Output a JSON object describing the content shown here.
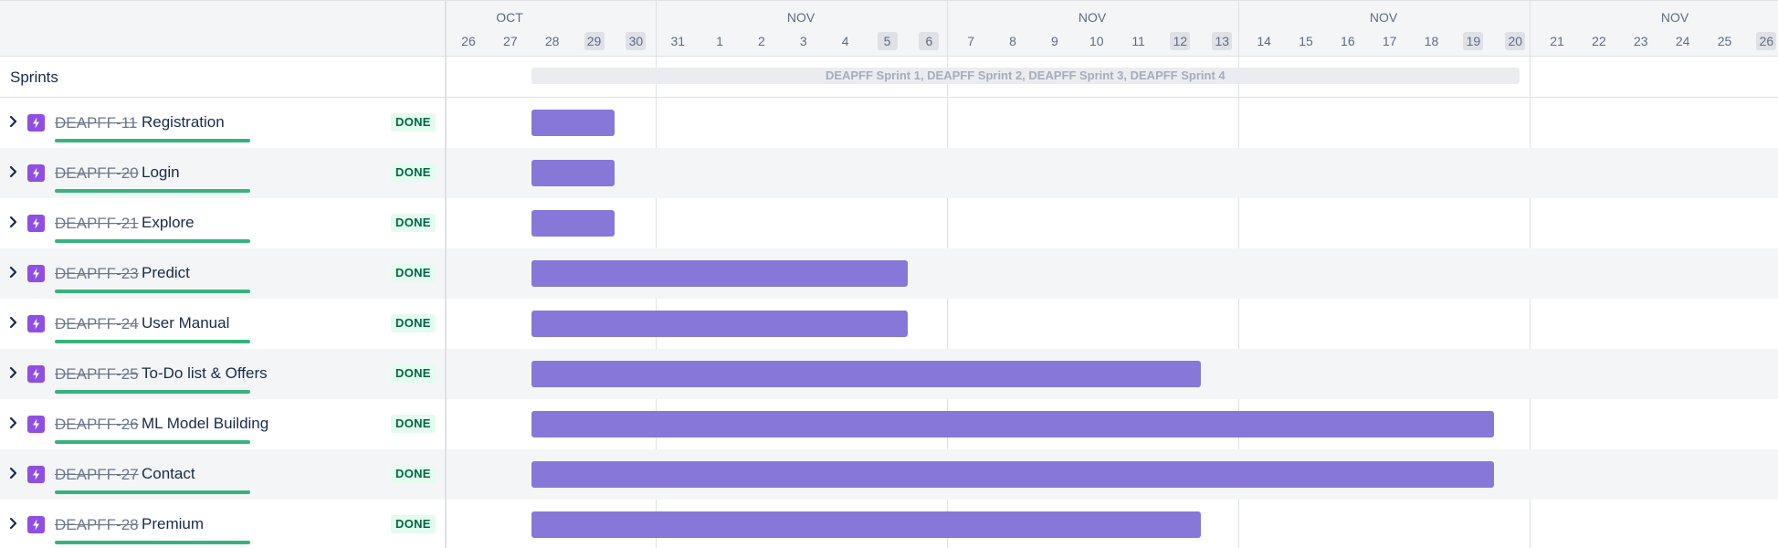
{
  "sidebar": {
    "sprints_label": "Sprints"
  },
  "timeline": {
    "months": [
      {
        "label": "OCT"
      },
      {
        "label": "NOV"
      },
      {
        "label": "NOV"
      },
      {
        "label": "NOV"
      },
      {
        "label": "NOV"
      }
    ],
    "days": [
      "26",
      "27",
      "28",
      "29",
      "30",
      "31",
      "1",
      "2",
      "3",
      "4",
      "5",
      "6",
      "7",
      "8",
      "9",
      "10",
      "11",
      "12",
      "13",
      "14",
      "15",
      "16",
      "17",
      "18",
      "19",
      "20",
      "21",
      "22",
      "23",
      "24",
      "25",
      "26"
    ],
    "weekend_days": [
      "29",
      "30",
      "5",
      "6",
      "12",
      "13",
      "19",
      "20",
      "26"
    ],
    "sprint_label": "DEAPFF Sprint 1, DEAPFF Sprint 2, DEAPFF Sprint 3, DEAPFF Sprint 4",
    "sprint_range": {
      "start": "Oct 28",
      "end": "Nov 20"
    }
  },
  "issues": [
    {
      "key": "DEAPFF-11",
      "title": "Registration",
      "status": "DONE",
      "start": "Oct 28",
      "end": "Oct 29"
    },
    {
      "key": "DEAPFF-20",
      "title": "Login",
      "status": "DONE",
      "start": "Oct 28",
      "end": "Oct 29"
    },
    {
      "key": "DEAPFF-21",
      "title": "Explore",
      "status": "DONE",
      "start": "Oct 28",
      "end": "Oct 29"
    },
    {
      "key": "DEAPFF-23",
      "title": "Predict",
      "status": "DONE",
      "start": "Oct 28",
      "end": "Nov 5"
    },
    {
      "key": "DEAPFF-24",
      "title": "User Manual",
      "status": "DONE",
      "start": "Oct 28",
      "end": "Nov 5"
    },
    {
      "key": "DEAPFF-25",
      "title": "To-Do list & Offers",
      "status": "DONE",
      "start": "Oct 28",
      "end": "Nov 12"
    },
    {
      "key": "DEAPFF-26",
      "title": "ML Model Building",
      "status": "DONE",
      "start": "Oct 28",
      "end": "Nov 19"
    },
    {
      "key": "DEAPFF-27",
      "title": "Contact",
      "status": "DONE",
      "start": "Oct 28",
      "end": "Nov 19"
    },
    {
      "key": "DEAPFF-28",
      "title": "Premium",
      "status": "DONE",
      "start": "Oct 28",
      "end": "Nov 12"
    }
  ],
  "colors": {
    "bar": "#8777d9",
    "issue_icon": "#904ee2",
    "progress": "#36b37e",
    "status_bg": "#e3fcef",
    "status_text": "#006644"
  },
  "icons": {
    "expand": "chevron-right-icon",
    "issue_type": "epic-lightning-icon"
  }
}
